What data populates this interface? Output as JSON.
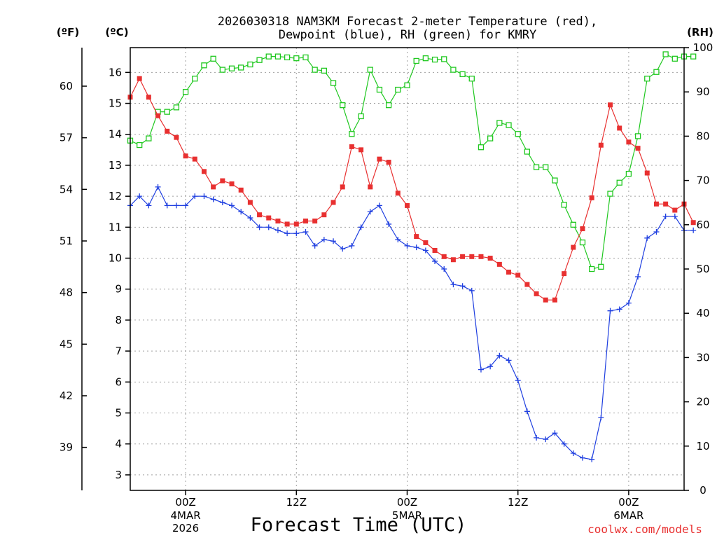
{
  "chart_data": {
    "type": "line",
    "title_line1": "2026030318 NAM3KM Forecast 2-meter Temperature (red),",
    "title_line2": "Dewpoint (blue), RH (green) for KMRY",
    "xlabel": "Forecast Time (UTC)",
    "credit": "coolwx.com/models",
    "units": {
      "fahrenheit": "(ºF)",
      "celsius": "(ºC)",
      "rh": "(RH)"
    },
    "x_ticks": [
      {
        "x": 6,
        "label": "00Z",
        "sub1": "4MAR",
        "sub2": "2026"
      },
      {
        "x": 18,
        "label": "12Z",
        "sub1": "",
        "sub2": ""
      },
      {
        "x": 30,
        "label": "00Z",
        "sub1": "5MAR",
        "sub2": ""
      },
      {
        "x": 42,
        "label": "12Z",
        "sub1": "",
        "sub2": ""
      },
      {
        "x": 54,
        "label": "00Z",
        "sub1": "6MAR",
        "sub2": ""
      }
    ],
    "xlim": [
      0,
      60
    ],
    "celsius_ticks": [
      3,
      4,
      5,
      6,
      7,
      8,
      9,
      10,
      11,
      12,
      13,
      14,
      15,
      16
    ],
    "fahrenheit_ticks": [
      39,
      42,
      45,
      48,
      51,
      54,
      57,
      60
    ],
    "rh_ticks": [
      0,
      10,
      20,
      30,
      40,
      50,
      60,
      70,
      80,
      90,
      100
    ],
    "ylim_celsius": [
      2.5,
      16.8
    ],
    "ylim_rh": [
      0,
      100
    ],
    "grid": true,
    "colors": {
      "temperature": "#e83030",
      "dewpoint": "#1f3fe0",
      "rh": "#20c820"
    },
    "series": [
      {
        "name": "Temperature",
        "unit": "C",
        "values": [
          15.2,
          15.8,
          15.2,
          14.6,
          14.1,
          13.9,
          13.3,
          13.2,
          12.8,
          12.3,
          12.5,
          12.4,
          12.2,
          11.8,
          11.4,
          11.3,
          11.2,
          11.1,
          11.1,
          11.2,
          11.2,
          11.4,
          11.8,
          12.3,
          13.6,
          13.5,
          12.3,
          13.2,
          13.1,
          12.1,
          11.7,
          10.7,
          10.5,
          10.25,
          10.05,
          9.95,
          10.05,
          10.05,
          10.05,
          10.0,
          9.8,
          9.55,
          9.45,
          9.15,
          8.85,
          8.65,
          8.65,
          9.5,
          10.35,
          10.95,
          11.95,
          13.65,
          14.95,
          14.2,
          13.75,
          13.55,
          12.75,
          11.75,
          11.75,
          11.55,
          11.75,
          11.15
        ]
      },
      {
        "name": "Dewpoint",
        "unit": "C",
        "values": [
          11.7,
          12.0,
          11.7,
          12.3,
          11.7,
          11.7,
          11.7,
          12.0,
          12.0,
          11.9,
          11.8,
          11.7,
          11.5,
          11.3,
          11.0,
          11.0,
          10.9,
          10.8,
          10.8,
          10.85,
          10.4,
          10.6,
          10.55,
          10.3,
          10.4,
          11.0,
          11.5,
          11.7,
          11.1,
          10.6,
          10.4,
          10.35,
          10.25,
          9.9,
          9.65,
          9.15,
          9.1,
          8.95,
          6.4,
          6.5,
          6.85,
          6.7,
          6.05,
          5.05,
          4.2,
          4.15,
          4.35,
          4.0,
          3.7,
          3.55,
          3.5,
          4.85,
          8.3,
          8.35,
          8.55,
          9.4,
          10.65,
          10.85,
          11.35,
          11.35,
          10.9,
          10.9
        ]
      },
      {
        "name": "RH",
        "unit": "%",
        "values": [
          79,
          78,
          79.5,
          85.5,
          85.5,
          86.5,
          90,
          93,
          96,
          97.5,
          95,
          95.3,
          95.5,
          96.2,
          97.2,
          98,
          98,
          97.8,
          97.6,
          97.8,
          95,
          94.8,
          92,
          87,
          80.5,
          84.5,
          95,
          90.5,
          87,
          90.5,
          91.5,
          97,
          97.6,
          97.3,
          97.4,
          95,
          94,
          93,
          77.5,
          79.5,
          83,
          82.5,
          80.5,
          76.5,
          73,
          73,
          70,
          64.5,
          60,
          56,
          50,
          50.5,
          67,
          69.5,
          71.5,
          80,
          93,
          94.5,
          98.5,
          97.5,
          98,
          98
        ]
      }
    ]
  }
}
